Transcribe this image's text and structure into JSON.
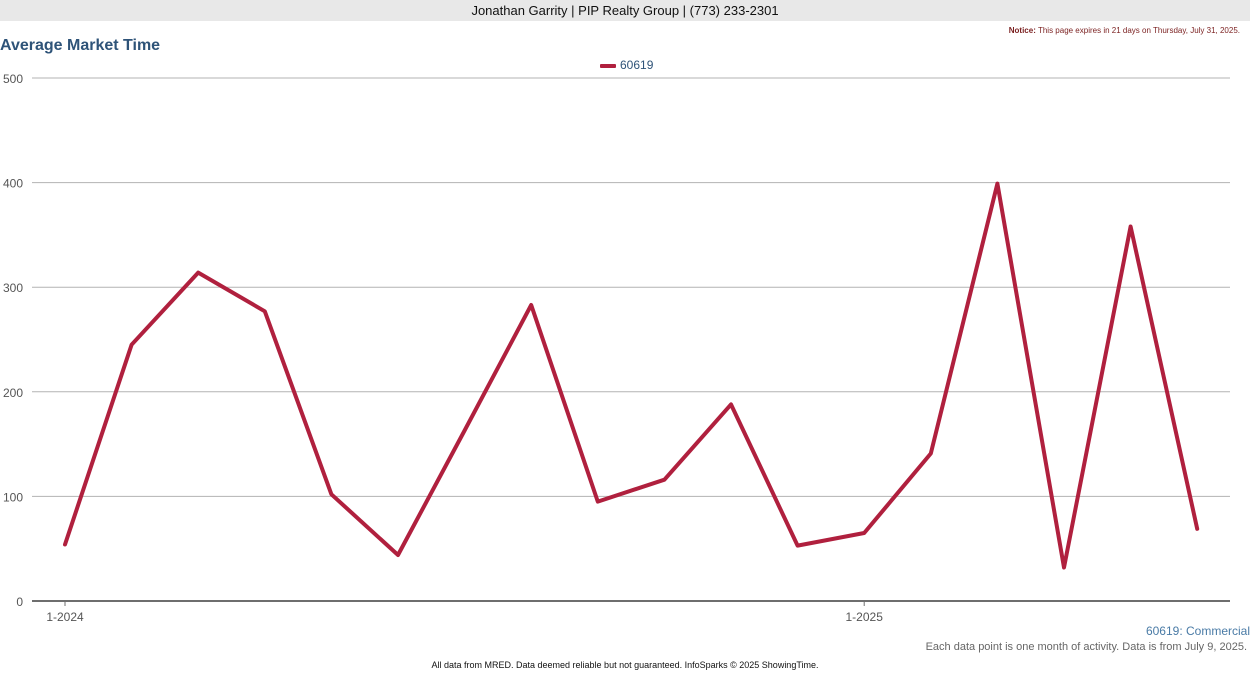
{
  "header": {
    "agent_line": "Jonathan Garrity | PIP Realty Group | (773) 233-2301",
    "notice_label": "Notice:",
    "notice_text": "This page expires in 21 days on Thursday, July 31, 2025."
  },
  "footer": {
    "subtitle": "60619: Commercial",
    "data_note": "Each data point is one month of activity. Data is from July 9, 2025.",
    "disclaimer": "All data from MRED. Data deemed reliable but not guaranteed. InfoSparks © 2025 ShowingTime."
  },
  "chart_data": {
    "type": "line",
    "title": "Average Market Time",
    "x": [
      "1-2024",
      "2-2024",
      "3-2024",
      "4-2024",
      "5-2024",
      "6-2024",
      "7-2024",
      "8-2024",
      "9-2024",
      "10-2024",
      "11-2024",
      "12-2024",
      "1-2025",
      "2-2025",
      "3-2025",
      "4-2025",
      "5-2025",
      "6-2025"
    ],
    "x_tick_labels": [
      "1-2024",
      "1-2025"
    ],
    "series": [
      {
        "name": "60619",
        "color": "#b0203e",
        "values": [
          54,
          245,
          314,
          277,
          102,
          44,
          163,
          283,
          95,
          116,
          188,
          53,
          65,
          141,
          399,
          32,
          358,
          69
        ]
      }
    ],
    "ylim": [
      0,
      500
    ],
    "yticks": [
      0,
      100,
      200,
      300,
      400,
      500
    ],
    "grid": true,
    "legend_position": "top-center"
  }
}
